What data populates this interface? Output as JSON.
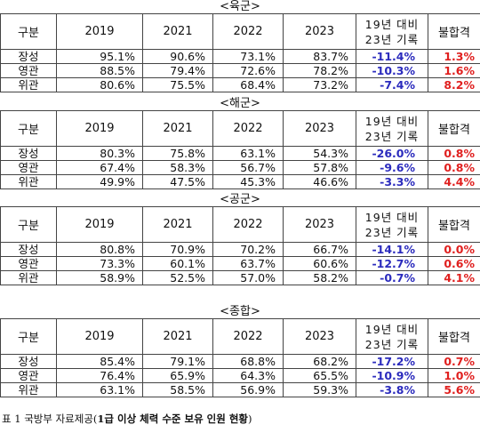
{
  "colors": {
    "diff_text": "#2b2bbd",
    "fail_text": "#e0201f",
    "border": "#444444"
  },
  "header": {
    "rank": "구분",
    "y2019": "2019",
    "y2021": "2021",
    "y2022": "2022",
    "y2023": "2023",
    "diff_line1": "19년 대비",
    "diff_line2": "23년 기록",
    "fail": "불합격"
  },
  "sections": [
    {
      "title": "<육군>",
      "rows": [
        {
          "rank": "장성",
          "y2019": "95.1%",
          "y2021": "90.6%",
          "y2022": "73.1%",
          "y2023": "83.7%",
          "diff": "-11.4%",
          "fail": "1.3%"
        },
        {
          "rank": "영관",
          "y2019": "88.5%",
          "y2021": "79.4%",
          "y2022": "72.6%",
          "y2023": "78.2%",
          "diff": "-10.3%",
          "fail": "1.6%"
        },
        {
          "rank": "위관",
          "y2019": "80.6%",
          "y2021": "75.5%",
          "y2022": "68.4%",
          "y2023": "73.2%",
          "diff": "-7.4%",
          "fail": "8.2%"
        }
      ]
    },
    {
      "title": "<해군>",
      "rows": [
        {
          "rank": "장성",
          "y2019": "80.3%",
          "y2021": "75.8%",
          "y2022": "63.1%",
          "y2023": "54.3%",
          "diff": "-26.0%",
          "fail": "0.8%"
        },
        {
          "rank": "영관",
          "y2019": "67.4%",
          "y2021": "58.3%",
          "y2022": "56.7%",
          "y2023": "57.8%",
          "diff": "-9.6%",
          "fail": "0.8%"
        },
        {
          "rank": "위관",
          "y2019": "49.9%",
          "y2021": "47.5%",
          "y2022": "45.3%",
          "y2023": "46.6%",
          "diff": "-3.3%",
          "fail": "4.4%"
        }
      ]
    },
    {
      "title": "<공군>",
      "rows": [
        {
          "rank": "장성",
          "y2019": "80.8%",
          "y2021": "70.9%",
          "y2022": "70.2%",
          "y2023": "66.7%",
          "diff": "-14.1%",
          "fail": "0.0%"
        },
        {
          "rank": "영관",
          "y2019": "73.3%",
          "y2021": "60.1%",
          "y2022": "63.7%",
          "y2023": "60.6%",
          "diff": "-12.7%",
          "fail": "0.6%"
        },
        {
          "rank": "위관",
          "y2019": "58.9%",
          "y2021": "52.5%",
          "y2022": "57.0%",
          "y2023": "58.2%",
          "diff": "-0.7%",
          "fail": "4.1%"
        }
      ]
    },
    {
      "title": "<종합>",
      "rows": [
        {
          "rank": "장성",
          "y2019": "85.4%",
          "y2021": "79.1%",
          "y2022": "68.8%",
          "y2023": "68.2%",
          "diff": "-17.2%",
          "fail": "0.7%"
        },
        {
          "rank": "영관",
          "y2019": "76.4%",
          "y2021": "65.9%",
          "y2022": "64.3%",
          "y2023": "65.5%",
          "diff": "-10.9%",
          "fail": "1.0%"
        },
        {
          "rank": "위관",
          "y2019": "63.1%",
          "y2021": "58.5%",
          "y2022": "56.9%",
          "y2023": "59.3%",
          "diff": "-3.8%",
          "fail": "5.6%"
        }
      ]
    }
  ],
  "caption": {
    "prefix": "표 1 국방부 자료제공(",
    "strong": "1급 이상 체력 수준 보유 인원 현황",
    "suffix": ")"
  }
}
